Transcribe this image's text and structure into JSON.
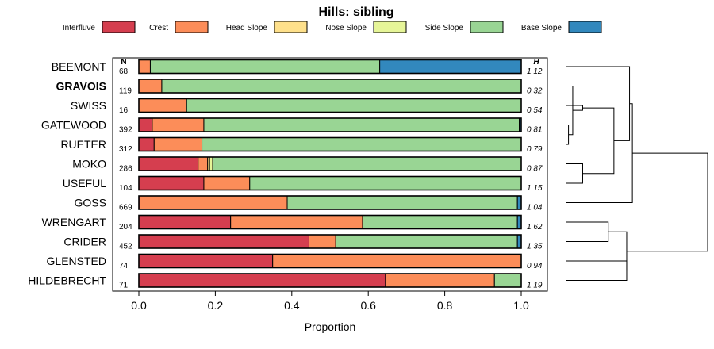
{
  "chart_data": {
    "type": "bar",
    "orientation": "horizontal",
    "stacked": true,
    "title": "Hills: sibling",
    "xlabel": "Proportion",
    "ylabel": "",
    "xlim": [
      0,
      1
    ],
    "x_ticks": [
      0.0,
      0.2,
      0.4,
      0.6,
      0.8,
      1.0
    ],
    "x_tick_labels": [
      "0.0",
      "0.2",
      "0.4",
      "0.6",
      "0.8",
      "1.0"
    ],
    "n_header": "N",
    "h_header": "H",
    "legend_position": "top",
    "series": [
      {
        "name": "Interfluve",
        "color": "#d53e4f"
      },
      {
        "name": "Crest",
        "color": "#fc8d59"
      },
      {
        "name": "Head Slope",
        "color": "#fee08b"
      },
      {
        "name": "Nose Slope",
        "color": "#e6f598"
      },
      {
        "name": "Side Slope",
        "color": "#99d594"
      },
      {
        "name": "Base Slope",
        "color": "#3288bd"
      }
    ],
    "rows": [
      {
        "label": "BEEMONT",
        "bold": false,
        "n": "68",
        "h": "1.12",
        "values": [
          0.0,
          0.03,
          0.0,
          0.0,
          0.6,
          0.37
        ]
      },
      {
        "label": "GRAVOIS",
        "bold": true,
        "n": "119",
        "h": "0.32",
        "values": [
          0.0,
          0.06,
          0.0,
          0.0,
          0.94,
          0.0
        ]
      },
      {
        "label": "SWISS",
        "bold": false,
        "n": "16",
        "h": "0.54",
        "values": [
          0.0,
          0.125,
          0.0,
          0.0,
          0.875,
          0.0
        ]
      },
      {
        "label": "GATEWOOD",
        "bold": false,
        "n": "392",
        "h": "0.81",
        "values": [
          0.035,
          0.135,
          0.0,
          0.0,
          0.825,
          0.005
        ]
      },
      {
        "label": "RUETER",
        "bold": false,
        "n": "312",
        "h": "0.79",
        "values": [
          0.04,
          0.125,
          0.0,
          0.0,
          0.835,
          0.0
        ]
      },
      {
        "label": "MOKO",
        "bold": false,
        "n": "286",
        "h": "0.87",
        "values": [
          0.155,
          0.025,
          0.005,
          0.008,
          0.807,
          0.0
        ]
      },
      {
        "label": "USEFUL",
        "bold": false,
        "n": "104",
        "h": "1.15",
        "values": [
          0.17,
          0.12,
          0.0,
          0.0,
          0.71,
          0.0
        ]
      },
      {
        "label": "GOSS",
        "bold": false,
        "n": "669",
        "h": "1.04",
        "values": [
          0.003,
          0.385,
          0.0,
          0.0,
          0.602,
          0.01
        ]
      },
      {
        "label": "WRENGART",
        "bold": false,
        "n": "204",
        "h": "1.62",
        "values": [
          0.24,
          0.345,
          0.0,
          0.0,
          0.405,
          0.01
        ]
      },
      {
        "label": "CRIDER",
        "bold": false,
        "n": "452",
        "h": "1.35",
        "values": [
          0.445,
          0.07,
          0.0,
          0.0,
          0.475,
          0.01
        ]
      },
      {
        "label": "GLENSTED",
        "bold": false,
        "n": "74",
        "h": "0.94",
        "values": [
          0.35,
          0.65,
          0.0,
          0.0,
          0.0,
          0.0
        ]
      },
      {
        "label": "HILDEBRECHT",
        "bold": false,
        "n": "71",
        "h": "1.19",
        "values": [
          0.645,
          0.285,
          0.0,
          0.0,
          0.07,
          0.0
        ]
      }
    ],
    "dendrogram": {
      "description": "hierarchical clustering of rows (leaf indices in row order)",
      "merges": [
        {
          "a": "r3",
          "b": "r4",
          "height": 0.02
        },
        {
          "a": "m0",
          "b": "r1",
          "height": 0.05
        },
        {
          "a": "m1",
          "b": "r2",
          "height": 0.12
        },
        {
          "a": "r5",
          "b": "r6",
          "height": 0.12
        },
        {
          "a": "m2",
          "b": "m3",
          "height": 0.34
        },
        {
          "a": "m4",
          "b": "r0",
          "height": 0.45
        },
        {
          "a": "m5",
          "b": "r7",
          "height": 0.47
        },
        {
          "a": "r8",
          "b": "r9",
          "height": 0.3
        },
        {
          "a": "r10",
          "b": "r11",
          "height": 0.43
        },
        {
          "a": "m7",
          "b": "m8",
          "height": 0.43
        },
        {
          "a": "m6",
          "b": "m9",
          "height": 1.0
        }
      ]
    }
  }
}
